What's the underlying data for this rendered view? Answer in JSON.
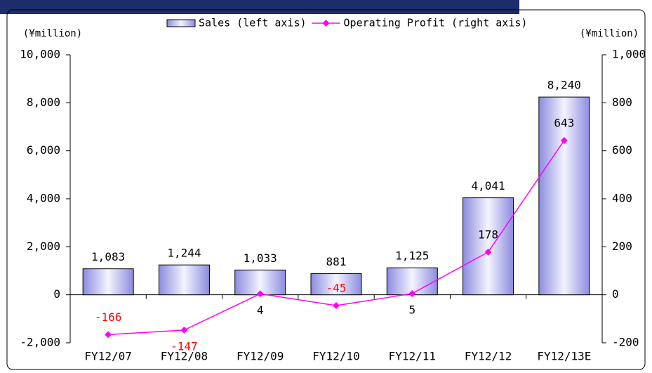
{
  "chart_data": {
    "type": "bar_line",
    "categories": [
      "FY12/07",
      "FY12/08",
      "FY12/09",
      "FY12/10",
      "FY12/11",
      "FY12/12",
      "FY12/13E"
    ],
    "series": [
      {
        "name": "Sales (left axis)",
        "type": "bar",
        "color": "#9999ee",
        "values": [
          1083,
          1244,
          1033,
          881,
          1125,
          4041,
          8240
        ],
        "value_labels": [
          "1,083",
          "1,244",
          "1,033",
          "881",
          "1,125",
          "4,041",
          "8,240"
        ]
      },
      {
        "name": "Operating Profit (right axis)",
        "type": "line",
        "axis": "y2",
        "color": "#ff00ff",
        "values": [
          -166,
          -147,
          4,
          -45,
          5,
          178,
          643
        ]
      }
    ],
    "ylabel": "(¥million)",
    "y2label": "(¥million)",
    "ylim": [
      -2000,
      10000
    ],
    "yticks": [
      {
        "value": -2000,
        "label": "-2,000"
      },
      0,
      {
        "value": 2000,
        "label": "2,000"
      },
      {
        "value": 4000,
        "label": "4,000"
      },
      {
        "value": 6000,
        "label": "6,000"
      },
      {
        "value": 8000,
        "label": "8,000"
      },
      {
        "value": 10000,
        "label": "10,000"
      }
    ],
    "y2lim": [
      -200,
      1000
    ],
    "y2ticks": [
      -200,
      0,
      200,
      400,
      600,
      800,
      {
        "value": 1000,
        "label": "1,000"
      }
    ],
    "negative_label_color": "#ff0000",
    "legend": "top"
  }
}
